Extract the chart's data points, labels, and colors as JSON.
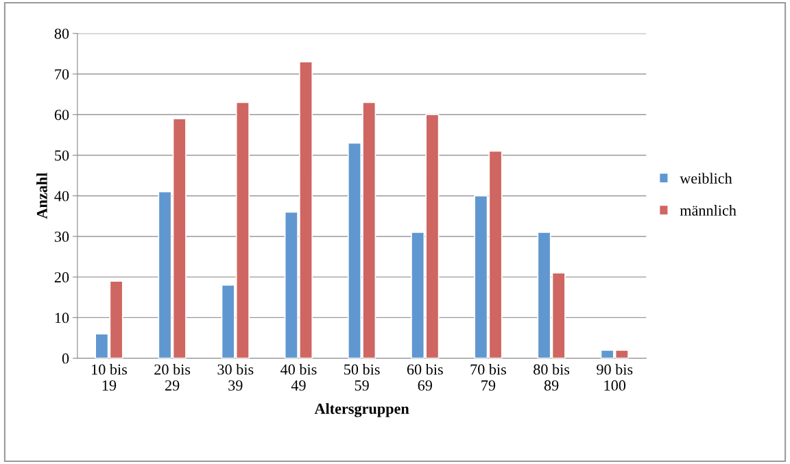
{
  "chart_data": {
    "type": "bar",
    "xlabel": "Altersgruppen",
    "ylabel": "Anzahl",
    "categories": [
      "10 bis\n19",
      "20 bis\n29",
      "30 bis\n39",
      "40 bis\n49",
      "50 bis\n59",
      "60 bis\n69",
      "70 bis\n79",
      "80 bis\n89",
      "90 bis\n100"
    ],
    "series": [
      {
        "name": "weiblich",
        "color": "#6097d0",
        "values": [
          6,
          41,
          18,
          36,
          53,
          31,
          40,
          31,
          2
        ]
      },
      {
        "name": "männlich",
        "color": "#cf6662",
        "values": [
          19,
          59,
          63,
          73,
          63,
          60,
          51,
          21,
          2
        ]
      }
    ],
    "ylim": [
      0,
      80
    ],
    "yticks": [
      0,
      10,
      20,
      30,
      40,
      50,
      60,
      70,
      80
    ],
    "grid": "y",
    "legend": "right"
  }
}
